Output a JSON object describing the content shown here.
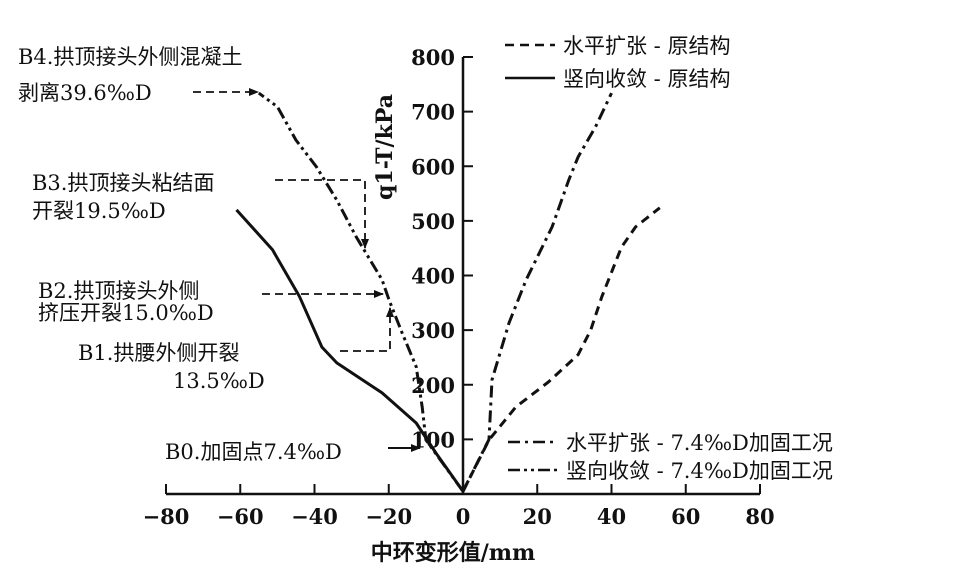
{
  "chart_data": {
    "type": "line",
    "title": "",
    "xlabel": "中环变形值/mm",
    "ylabel": "q1-T/kPa",
    "ylabel_main": "q",
    "ylabel_sub": "1-T",
    "ylabel_unit": "/kPa",
    "xlim": [
      -80,
      80
    ],
    "ylim": [
      0,
      800
    ],
    "xticks": [
      -80,
      -60,
      -40,
      -20,
      0,
      20,
      40,
      60,
      80
    ],
    "xtick_labels": [
      "−80",
      "−60",
      "−40",
      "−20",
      "0",
      "20",
      "40",
      "60",
      "80"
    ],
    "yticks": [
      100,
      200,
      300,
      400,
      500,
      600,
      700,
      800
    ],
    "ytick_labels": [
      "100",
      "200",
      "300",
      "400",
      "500",
      "600",
      "700",
      "800"
    ],
    "grid": false,
    "series": [
      {
        "name": "水平扩张 - 原结构",
        "style": "dashed",
        "legend_group": "top",
        "x": [
          0,
          7,
          14.2,
          23,
          31,
          34.4,
          37.4,
          42.7,
          46.5,
          53
        ],
        "y": [
          5,
          99,
          159,
          205,
          255,
          300,
          361,
          452,
          489,
          524
        ]
      },
      {
        "name": "竖向收敛 - 原结构",
        "style": "solid",
        "legend_group": "top",
        "x": [
          0,
          -7.3,
          -12.6,
          -21.8,
          -34,
          -38,
          -44,
          -51.3,
          -61
        ],
        "y": [
          5,
          75,
          130,
          185,
          240,
          269,
          361,
          447,
          520
        ]
      },
      {
        "name": "水平扩张 - 7.4‰D加固工况",
        "style": "dashdot",
        "legend_group": "bottom",
        "x": [
          0,
          7,
          7.8,
          12.4,
          17,
          19.6,
          24,
          28.5,
          31,
          35.7,
          40
        ],
        "y": [
          5,
          100,
          209,
          313,
          392,
          428,
          489,
          575,
          617,
          672,
          734
        ]
      },
      {
        "name": "竖向收敛 - 7.4‰D加固工况",
        "style": "dashdotdot",
        "legend_group": "bottom",
        "x": [
          0,
          -10,
          -11,
          -12.6,
          -16.4,
          -19.9,
          -21.8,
          -28.8,
          -34,
          -39.5,
          -45,
          -50,
          -55
        ],
        "y": [
          5,
          99,
          159,
          233,
          295,
          355,
          392,
          471,
          538,
          599,
          648,
          709,
          734
        ]
      }
    ],
    "legend_placement": "top-right and bottom-right",
    "annotations": [
      {
        "id": "B4",
        "lines": [
          "B4.拱顶接头外侧混凝土",
          "剥离39.6‰D"
        ],
        "target": [
          -55,
          734
        ]
      },
      {
        "id": "B3",
        "lines": [
          "B3.拱顶接头粘结面",
          "开裂19.5‰D"
        ],
        "target": [
          -26,
          445
        ]
      },
      {
        "id": "B2",
        "lines": [
          "B2.拱顶接头外侧",
          "挤压开裂15.0‰D"
        ],
        "target": [
          -21,
          365
        ]
      },
      {
        "id": "B1",
        "lines": [
          "B1.拱腰外侧开裂",
          "13.5‰D"
        ],
        "target": [
          -20,
          335
        ]
      },
      {
        "id": "B0",
        "lines": [
          "B0.加固点7.4‰D"
        ],
        "target": [
          -12,
          95
        ]
      }
    ]
  }
}
